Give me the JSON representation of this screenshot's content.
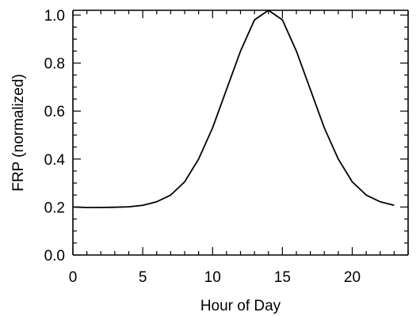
{
  "chart_data": {
    "type": "line",
    "title": "",
    "xlabel": "Hour of Day",
    "ylabel": "FRP (normalized)",
    "xlim": [
      0,
      24
    ],
    "ylim": [
      0,
      1.02
    ],
    "x_major_ticks": [
      0,
      5,
      10,
      15,
      20
    ],
    "x_tick_labels": [
      "0",
      "5",
      "10",
      "15",
      "20"
    ],
    "y_major_ticks": [
      0.0,
      0.2,
      0.4,
      0.6,
      0.8,
      1.0
    ],
    "y_tick_labels": [
      "0.0",
      "0.2",
      "0.4",
      "0.6",
      "0.8",
      "1.0"
    ],
    "grid": false,
    "legend": "none",
    "series": [
      {
        "color": "#000000",
        "x": [
          0,
          1,
          2,
          3,
          4,
          5,
          6,
          7,
          8,
          9,
          10,
          11,
          12,
          13,
          14,
          15,
          16,
          17,
          18,
          19,
          20,
          21,
          22,
          23
        ],
        "y": [
          0.2,
          0.198,
          0.198,
          0.199,
          0.201,
          0.207,
          0.222,
          0.25,
          0.305,
          0.4,
          0.53,
          0.69,
          0.85,
          0.98,
          1.02,
          0.98,
          0.85,
          0.69,
          0.53,
          0.4,
          0.305,
          0.25,
          0.222,
          0.207
        ]
      }
    ]
  }
}
